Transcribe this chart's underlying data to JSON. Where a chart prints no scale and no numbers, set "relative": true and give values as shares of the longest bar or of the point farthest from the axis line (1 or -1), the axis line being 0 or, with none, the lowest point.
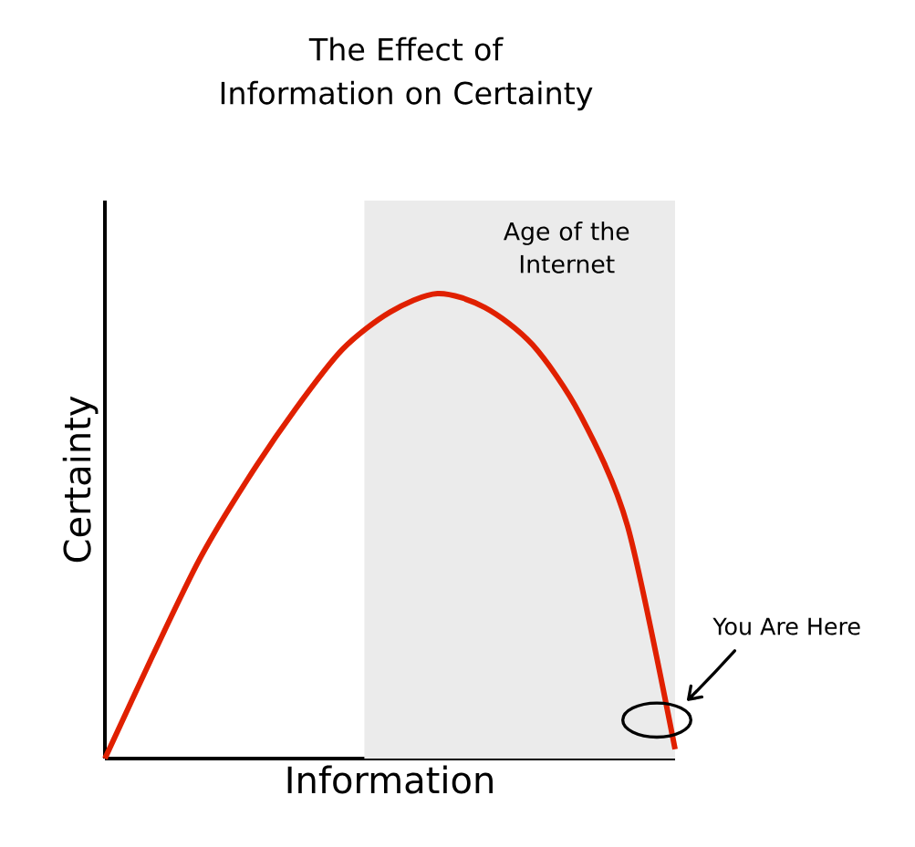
{
  "chart_data": {
    "type": "line",
    "title": "The Effect of Information on Certainty",
    "xlabel": "Information",
    "ylabel": "Certainty",
    "relative": true,
    "categories": [
      null,
      null,
      null,
      null,
      null,
      null,
      null,
      null,
      null,
      null,
      null,
      null,
      null
    ],
    "series": [
      {
        "color": "#e02000",
        "values": [
          0,
          0.22,
          0.43,
          0.6,
          0.75,
          0.88,
          0.96,
          1,
          0.97,
          0.89,
          0.74,
          0.5,
          0.02
        ]
      }
    ],
    "annotations": [
      "Age of the Internet",
      "You Are Here"
    ]
  }
}
